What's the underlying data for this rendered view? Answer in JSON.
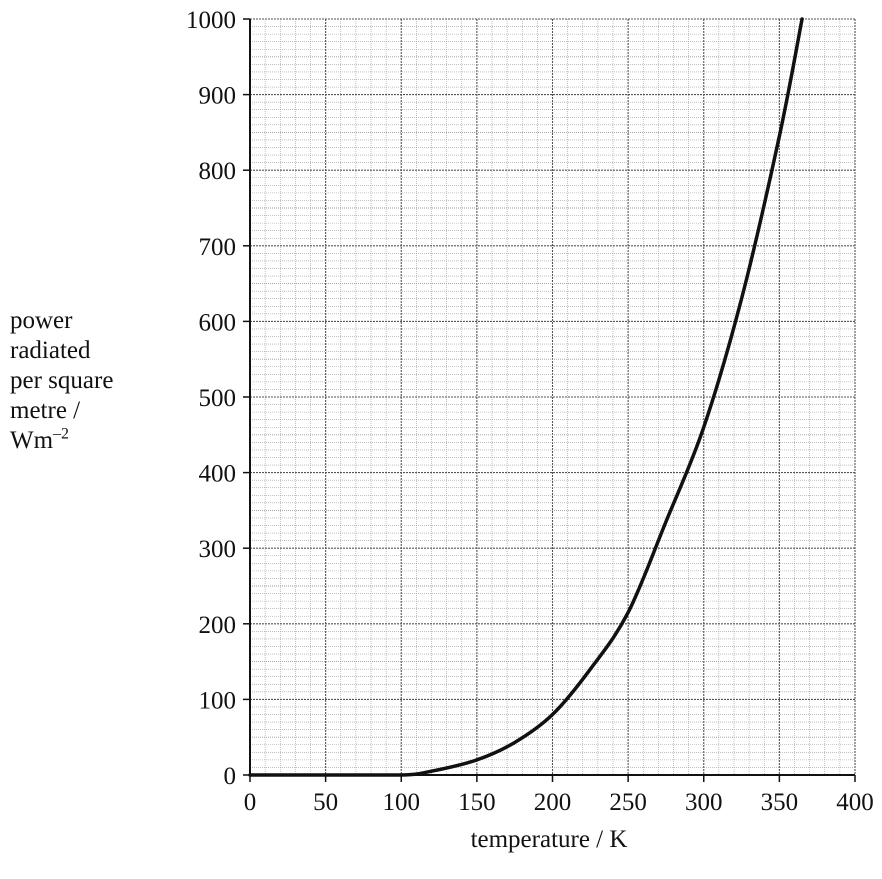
{
  "chart_data": {
    "type": "line",
    "xlabel": "temperature / K",
    "ylabel_lines": [
      "power",
      "radiated",
      "per square",
      "metre /"
    ],
    "ylabel_unit_base": "Wm",
    "ylabel_unit_exp": "–2",
    "x_ticks": [
      "0",
      "50",
      "100",
      "150",
      "200",
      "250",
      "300",
      "350",
      "400"
    ],
    "y_ticks": [
      "0",
      "100",
      "200",
      "300",
      "400",
      "500",
      "600",
      "700",
      "800",
      "900",
      "1000"
    ],
    "xlim": [
      0,
      400
    ],
    "ylim": [
      0,
      1000
    ],
    "grid": true,
    "grid_minor_x": 5,
    "grid_minor_y": 10,
    "legend": "none",
    "series": [
      {
        "x": [
          0,
          50,
          100,
          120,
          150,
          175,
          200,
          225,
          250,
          275,
          300,
          325,
          350,
          365
        ],
        "y": [
          0,
          0,
          0,
          5,
          20,
          43,
          80,
          140,
          215,
          335,
          460,
          630,
          845,
          1000
        ]
      }
    ],
    "colors": {
      "line": "#111111",
      "grid_major": "#555555",
      "grid_minor": "#9a9a9a",
      "axis": "#111111"
    }
  }
}
